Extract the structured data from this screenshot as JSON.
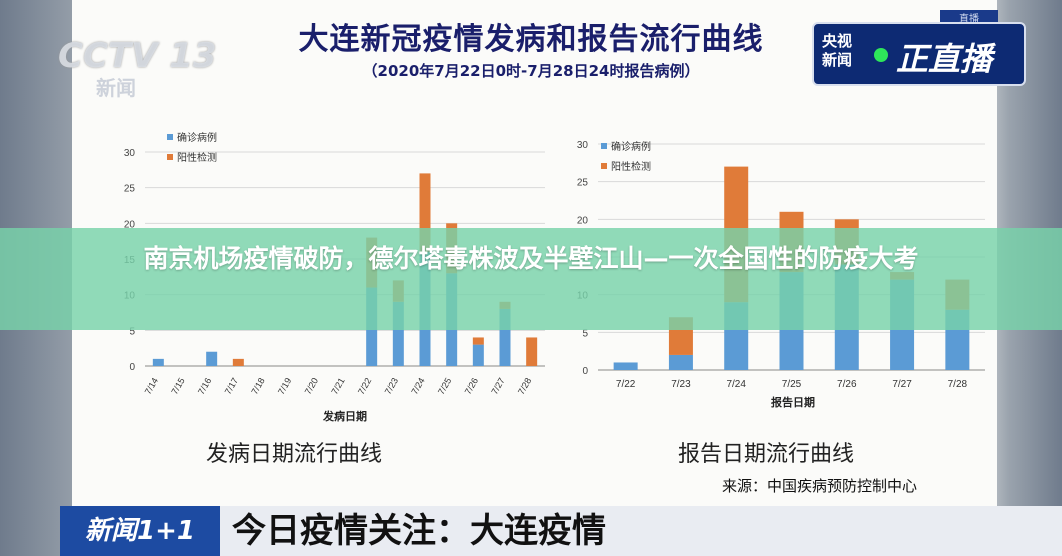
{
  "header": {
    "title": "大连新冠疫情发病和报告流行曲线",
    "subtitle": "（2020年7月22日0时-7月28日24时报告病例）"
  },
  "watermark": {
    "logo": "CCTV 13",
    "sub": "新闻"
  },
  "live_badge": {
    "small": "央视新闻",
    "big": "正直播",
    "tag": "直播"
  },
  "banner": {
    "text": "南京机场疫情破防，德尔塔毒株波及半壁江山—一次全国性的防疫大考"
  },
  "chart_captions": {
    "left": "发病日期流行曲线",
    "right": "报告日期流行曲线"
  },
  "source": "来源：中国疾病预防控制中心",
  "ticker": {
    "logo": "新闻1+1",
    "text": "今日疫情关注：大连疫情"
  },
  "colors": {
    "confirmed": "#5b9bd5",
    "positive": "#e07b39",
    "title": "#1a1f6b",
    "banner": "#78d2aa"
  },
  "chart_data": [
    {
      "type": "bar",
      "stacked": true,
      "xlabel": "发病日期",
      "ylim": [
        0,
        30
      ],
      "yticks": [
        0,
        5,
        10,
        15,
        20,
        25,
        30
      ],
      "legend": "top-left",
      "categories": [
        "7/14",
        "7/15",
        "7/16",
        "7/17",
        "7/18",
        "7/19",
        "7/20",
        "7/21",
        "7/22",
        "7/23",
        "7/24",
        "7/25",
        "7/26",
        "7/27",
        "7/28"
      ],
      "series": [
        {
          "name": "确诊病例",
          "values": [
            1,
            0,
            2,
            0,
            0,
            0,
            0,
            0,
            11,
            9,
            16,
            13,
            3,
            8,
            0
          ]
        },
        {
          "name": "阳性检测",
          "values": [
            0,
            0,
            0,
            1,
            0,
            0,
            0,
            0,
            7,
            3,
            11,
            7,
            1,
            1,
            4
          ]
        }
      ]
    },
    {
      "type": "bar",
      "stacked": true,
      "xlabel": "报告日期",
      "ylim": [
        0,
        30
      ],
      "yticks": [
        0,
        5,
        10,
        15,
        20,
        25,
        30
      ],
      "legend": "top-left",
      "categories": [
        "7/22",
        "7/23",
        "7/24",
        "7/25",
        "7/26",
        "7/27",
        "7/28"
      ],
      "series": [
        {
          "name": "确诊病例",
          "values": [
            1,
            2,
            9,
            13,
            14,
            12,
            8
          ]
        },
        {
          "name": "阳性检测",
          "values": [
            0,
            5,
            18,
            8,
            6,
            1,
            4
          ]
        }
      ]
    }
  ]
}
